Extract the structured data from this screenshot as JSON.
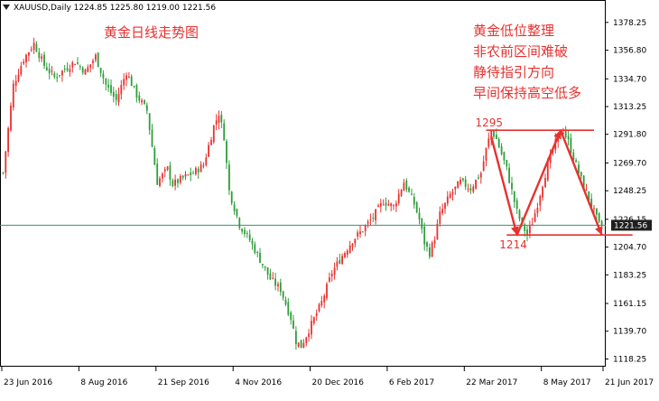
{
  "window": {
    "header_text": "XAUUSD,Daily  1224.85 1225.80 1219.00 1221.56"
  },
  "colors": {
    "bull": "#e8312f",
    "bear": "#2e9d3b",
    "annotation": "#e8312f",
    "current_line": "#3f8f6b",
    "price_badge_bg": "#1f1f1f",
    "price_badge_text": "#ffffff",
    "axis": "#000000"
  },
  "annotations": {
    "title": "黄金日线走势图",
    "commentary": [
      "黄金低位整理",
      "非农前区间难破",
      "静待指引方向",
      "早间保持高空低多"
    ],
    "resistance_label": "1295",
    "support_label": "1214"
  },
  "chart_data": {
    "type": "candlestick",
    "symbol": "XAUUSD",
    "timeframe": "Daily",
    "last": {
      "open": 1224.85,
      "high": 1225.8,
      "low": 1219.0,
      "close": 1221.56
    },
    "current_price_label": "1221.56",
    "ylim": [
      1113,
      1390
    ],
    "y_ticks": [
      "1378.25",
      "1356.80",
      "1334.70",
      "1313.25",
      "1291.80",
      "1269.70",
      "1248.25",
      "1226.15",
      "1204.70",
      "1183.25",
      "1161.15",
      "1139.70",
      "1118.25"
    ],
    "x_ticks": [
      "23 Jun 2016",
      "8 Aug 2016",
      "21 Sep 2016",
      "4 Nov 2016",
      "20 Dec 2016",
      "6 Feb 2017",
      "22 Mar 2017",
      "8 May 2017",
      "21 Jun 2017"
    ],
    "closes_by_index": [
      [
        0,
        1262
      ],
      [
        4,
        1330
      ],
      [
        8,
        1350
      ],
      [
        12,
        1362
      ],
      [
        16,
        1345
      ],
      [
        20,
        1336
      ],
      [
        24,
        1342
      ],
      [
        28,
        1348
      ],
      [
        32,
        1340
      ],
      [
        36,
        1352
      ],
      [
        40,
        1330
      ],
      [
        44,
        1318
      ],
      [
        48,
        1340
      ],
      [
        52,
        1322
      ],
      [
        56,
        1310
      ],
      [
        60,
        1255
      ],
      [
        64,
        1265
      ],
      [
        66,
        1253
      ],
      [
        70,
        1258
      ],
      [
        74,
        1262
      ],
      [
        78,
        1268
      ],
      [
        82,
        1298
      ],
      [
        84,
        1308
      ],
      [
        86,
        1290
      ],
      [
        88,
        1248
      ],
      [
        92,
        1222
      ],
      [
        96,
        1210
      ],
      [
        100,
        1195
      ],
      [
        104,
        1180
      ],
      [
        108,
        1172
      ],
      [
        112,
        1150
      ],
      [
        114,
        1132
      ],
      [
        116,
        1128
      ],
      [
        120,
        1145
      ],
      [
        124,
        1162
      ],
      [
        128,
        1185
      ],
      [
        132,
        1198
      ],
      [
        136,
        1210
      ],
      [
        140,
        1218
      ],
      [
        144,
        1228
      ],
      [
        148,
        1240
      ],
      [
        152,
        1236
      ],
      [
        156,
        1255
      ],
      [
        160,
        1238
      ],
      [
        162,
        1226
      ],
      [
        164,
        1208
      ],
      [
        166,
        1200
      ],
      [
        168,
        1212
      ],
      [
        170,
        1230
      ],
      [
        174,
        1245
      ],
      [
        178,
        1255
      ],
      [
        182,
        1250
      ],
      [
        186,
        1262
      ],
      [
        188,
        1280
      ],
      [
        190,
        1295
      ],
      [
        192,
        1288
      ],
      [
        196,
        1265
      ],
      [
        198,
        1248
      ],
      [
        200,
        1232
      ],
      [
        202,
        1222
      ],
      [
        204,
        1214
      ],
      [
        206,
        1224
      ],
      [
        208,
        1238
      ],
      [
        210,
        1254
      ],
      [
        212,
        1268
      ],
      [
        214,
        1280
      ],
      [
        216,
        1290
      ],
      [
        218,
        1295
      ],
      [
        220,
        1286
      ],
      [
        222,
        1274
      ],
      [
        224,
        1262
      ],
      [
        226,
        1252
      ],
      [
        228,
        1242
      ],
      [
        230,
        1232
      ],
      [
        232,
        1222
      ],
      [
        233,
        1221.56
      ]
    ]
  }
}
